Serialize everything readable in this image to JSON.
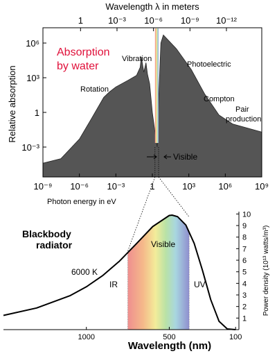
{
  "chart_data": [
    {
      "type": "area",
      "x2label": "Wavelength λ in meters",
      "xlabel": "Photon energy in eV",
      "ylabel": "Relative absorption",
      "xscale": "log",
      "yscale": "log",
      "xlim": [
        1e-09,
        1000000000.0
      ],
      "ylim": [
        2.6e-06,
        21000000.0
      ],
      "x2lim": [
        1240,
        1.24e-15
      ],
      "xticks": [
        {
          "value": 1e-09,
          "label": "10⁻⁹"
        },
        {
          "value": 1e-06,
          "label": "10⁻⁶"
        },
        {
          "value": 0.001,
          "label": "10⁻³"
        },
        1,
        {
          "value": 1000.0,
          "label": "10³"
        },
        {
          "value": 1000000.0,
          "label": "10⁶"
        },
        {
          "value": 1000000000.0,
          "label": "10⁹"
        }
      ],
      "x2ticks": [
        1,
        {
          "value": 0.001,
          "label": "10⁻³"
        },
        {
          "value": 1e-06,
          "label": "10⁻⁶"
        },
        {
          "value": 1e-09,
          "label": "10⁻⁹"
        },
        {
          "value": 1e-12,
          "label": "10⁻¹²"
        }
      ],
      "yticks": [
        {
          "value": 0.001,
          "label": "10⁻³"
        },
        1,
        {
          "value": 1000.0,
          "label": "10³"
        },
        {
          "value": 1000000.0,
          "label": "10⁶"
        }
      ],
      "x": [
        1e-09,
        3e-08,
        1e-06,
        1e-05,
        0.0001,
        0.0003,
        0.001,
        0.01,
        0.05,
        0.1,
        0.125,
        0.2,
        0.3,
        0.4,
        0.6,
        1,
        1.8,
        2.5,
        3.5,
        5,
        8,
        100,
        1600,
        20000,
        300000,
        4000000,
        1000000000.0
      ],
      "values": [
        4e-05,
        0.0001,
        0.005,
        0.3,
        20,
        60,
        160,
        600,
        1600,
        8000,
        60000,
        3000,
        20000,
        2000,
        300,
        1,
        0.01,
        0.001,
        100,
        1000000,
        5000000,
        300000,
        5000,
        40,
        0.6,
        0.1,
        0.02
      ],
      "color": "#555555",
      "visible_band": [
        1.65,
        3.26
      ],
      "annotations": [
        {
          "text": [
            "Absorption",
            "by water"
          ],
          "color": "#e0103a"
        },
        {
          "text": [
            "Vibration"
          ]
        },
        {
          "text": [
            "Rotation"
          ]
        },
        {
          "text": [
            "Photoelectric"
          ]
        },
        {
          "text": [
            "Compton"
          ]
        },
        {
          "text": [
            "Pair",
            "production"
          ]
        },
        {
          "text": [
            "Visible"
          ]
        }
      ]
    },
    {
      "type": "line",
      "xlabel": "Wavelength (nm)",
      "ylabel": "Power density (10¹³ watts/m³)",
      "xlim": [
        1500,
        80
      ],
      "ylim": [
        0,
        10.2
      ],
      "xticks": [
        1000,
        500,
        100
      ],
      "yticks": [
        1,
        2,
        3,
        4,
        5,
        6,
        7,
        8,
        9,
        10
      ],
      "x": [
        1500,
        1300,
        1100,
        1000,
        900,
        800,
        700,
        600,
        500,
        483,
        450,
        400,
        350,
        300,
        250,
        200,
        150,
        100
      ],
      "values": [
        1.23,
        1.87,
        2.93,
        3.7,
        4.69,
        5.93,
        7.4,
        8.91,
        9.87,
        9.9,
        9.77,
        9.04,
        7.46,
        5.14,
        2.59,
        0.72,
        0.06,
        0
      ],
      "color": "#000000",
      "visible_band": [
        750,
        380
      ],
      "annotations": [
        {
          "text": [
            "Blackbody",
            "radiator"
          ]
        },
        {
          "text": [
            "Visible"
          ]
        },
        {
          "text": [
            "6000 K"
          ]
        },
        {
          "text": [
            "IR"
          ]
        },
        {
          "text": [
            "UV"
          ]
        }
      ]
    }
  ]
}
